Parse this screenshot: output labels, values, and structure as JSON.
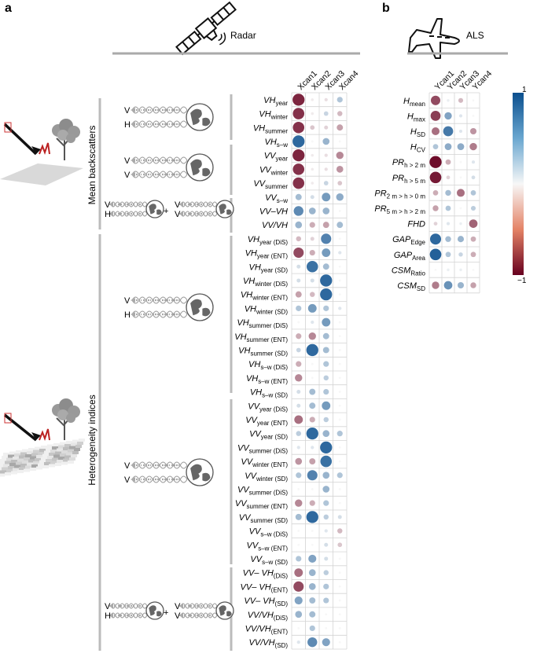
{
  "panel_labels": {
    "a": "a",
    "b": "b"
  },
  "headers": {
    "radar": "Radar",
    "als": "ALS"
  },
  "group_labels": {
    "mean": "Mean backscatters",
    "het": "Heterogeneity indices"
  },
  "pol": {
    "V": "V",
    "H": "H",
    "plus": "+"
  },
  "colorbar": {
    "max": "1",
    "min": "−1",
    "high_color": "#0b4f8e",
    "mid_color": "#f7f7f7",
    "low_color": "#67001f"
  },
  "chart_data": [
    {
      "type": "heatmap",
      "panel": "a",
      "columns": [
        "Xcan1",
        "Xcan2",
        "Xcan3",
        "Xcan4"
      ],
      "rows": [
        {
          "b": "VH",
          "s": "year",
          "v": [
            -0.85,
            -0.05,
            -0.1,
            0.3
          ]
        },
        {
          "b": "VH",
          "s": "winter",
          "v": [
            -0.8,
            -0.05,
            0.2,
            -0.25
          ]
        },
        {
          "b": "VH",
          "s": "summer",
          "v": [
            -0.8,
            -0.2,
            -0.15,
            -0.35
          ]
        },
        {
          "b": "VH",
          "s": "s–w",
          "v": [
            0.85,
            0,
            0.4,
            0
          ]
        },
        {
          "b": "VV",
          "s": "year",
          "v": [
            -0.85,
            -0.05,
            -0.1,
            -0.45
          ]
        },
        {
          "b": "VV",
          "s": "winter",
          "v": [
            -0.8,
            -0.05,
            -0.1,
            -0.4
          ]
        },
        {
          "b": "VV",
          "s": "summer",
          "v": [
            -0.8,
            -0.05,
            0.2,
            -0.2
          ]
        },
        {
          "b": "VV",
          "s": "s–w",
          "v": [
            0.35,
            0.15,
            0.55,
            0.45
          ]
        },
        {
          "b": "VV–VH",
          "s": "",
          "v": [
            0.65,
            0.4,
            0.4,
            0
          ]
        },
        {
          "b": "VV/VH",
          "s": "",
          "v": [
            0.4,
            -0.3,
            -0.35,
            0.35
          ]
        },
        {
          "b": "VH",
          "s": "year (DiS)",
          "v": [
            -0.25,
            -0.15,
            0.7,
            0
          ]
        },
        {
          "b": "VH",
          "s": "year (ENT)",
          "v": [
            -0.7,
            -0.3,
            0.55,
            0.1
          ]
        },
        {
          "b": "VH",
          "s": "year (SD)",
          "v": [
            0.15,
            0.8,
            0.35,
            0
          ]
        },
        {
          "b": "VH",
          "s": "winter (DiS)",
          "v": [
            0.15,
            0.15,
            0.85,
            0
          ]
        },
        {
          "b": "VH",
          "s": "winter (ENT)",
          "v": [
            -0.35,
            -0.25,
            0.85,
            0
          ]
        },
        {
          "b": "VH",
          "s": "winter (SD)",
          "v": [
            0.3,
            0.55,
            0.3,
            0.1
          ]
        },
        {
          "b": "VH",
          "s": "summer (DiS)",
          "v": [
            0,
            0.1,
            0.55,
            0
          ]
        },
        {
          "b": "VH",
          "s": "summer (ENT)",
          "v": [
            -0.3,
            -0.45,
            0.35,
            0
          ]
        },
        {
          "b": "VH",
          "s": "summer (SD)",
          "v": [
            0.2,
            0.85,
            0.35,
            0
          ]
        },
        {
          "b": "VH",
          "s": "s–w (DiS)",
          "v": [
            -0.3,
            0,
            0.3,
            0
          ]
        },
        {
          "b": "VH",
          "s": "s–w (ENT)",
          "v": [
            -0.45,
            0,
            0.25,
            0
          ]
        },
        {
          "b": "VH",
          "s": "s–w (SD)",
          "v": [
            0.15,
            0.35,
            0.3,
            0
          ]
        },
        {
          "b": "VV",
          "s": "year (DiS)",
          "v": [
            0.15,
            0.35,
            0.55,
            0
          ]
        },
        {
          "b": "VV",
          "s": "year (ENT)",
          "v": [
            -0.55,
            -0.3,
            0.25,
            0
          ]
        },
        {
          "b": "VV",
          "s": "year (SD)",
          "v": [
            0.25,
            0.85,
            0.4,
            0.3
          ]
        },
        {
          "b": "VV",
          "s": "summer (DiS)",
          "v": [
            0.1,
            0.1,
            0.85,
            0
          ]
        },
        {
          "b": "VV",
          "s": "winter (ENT)",
          "v": [
            -0.4,
            -0.35,
            0.8,
            0
          ]
        },
        {
          "b": "VV",
          "s": "winter (SD)",
          "v": [
            0.3,
            0.7,
            0.4,
            0.3
          ]
        },
        {
          "b": "VV",
          "s": "summer (DiS)",
          "v": [
            0,
            0,
            0.4,
            0
          ]
        },
        {
          "b": "VV",
          "s": "summer (ENT)",
          "v": [
            -0.45,
            -0.3,
            0.3,
            0
          ]
        },
        {
          "b": "VV",
          "s": "summer (SD)",
          "v": [
            0.35,
            0.85,
            0.25,
            0.15
          ]
        },
        {
          "b": "VV",
          "s": "s–w (DiS)",
          "v": [
            0,
            0,
            0.1,
            -0.25
          ]
        },
        {
          "b": "VV",
          "s": "s–w (ENT)",
          "v": [
            0,
            0,
            0.15,
            -0.2
          ]
        },
        {
          "b": "VV",
          "s": "s–w (SD)",
          "v": [
            0.3,
            0.5,
            0.15,
            0
          ]
        },
        {
          "b": "VV– VH",
          "s": "(DiS)",
          "v": [
            -0.55,
            0.4,
            0.25,
            0
          ]
        },
        {
          "b": "VV– VH",
          "s": "(ENT)",
          "v": [
            -0.7,
            0.4,
            0.3,
            0
          ]
        },
        {
          "b": "VV– VH",
          "s": "(SD)",
          "v": [
            0.5,
            0.35,
            0.3,
            0
          ]
        },
        {
          "b": "VV/VH",
          "s": "(DiS)",
          "v": [
            0.4,
            0.35,
            0,
            0
          ]
        },
        {
          "b": "VV/VH",
          "s": "(ENT)",
          "v": [
            0,
            0.3,
            0,
            0
          ]
        },
        {
          "b": "VV/VH",
          "s": "(SD)",
          "v": [
            0.1,
            0.65,
            0.5,
            0
          ]
        }
      ],
      "range": [
        -1,
        1
      ]
    },
    {
      "type": "heatmap",
      "panel": "b",
      "columns": [
        "Ycan1",
        "Ycan2",
        "Ycan3",
        "Ycan4"
      ],
      "rows": [
        {
          "b": "H",
          "s": "mean",
          "v": [
            -0.7,
            0.05,
            -0.25,
            0
          ]
        },
        {
          "b": "H",
          "s": "max",
          "v": [
            -0.75,
            0.5,
            0.1,
            0
          ]
        },
        {
          "b": "H",
          "s": "SD",
          "v": [
            -0.55,
            0.75,
            0.1,
            -0.4
          ]
        },
        {
          "b": "H",
          "s": "CV",
          "v": [
            0.3,
            0.45,
            0.45,
            -0.5
          ]
        },
        {
          "b": "PR",
          "s": "h > 2 m",
          "v": [
            -0.95,
            -0.3,
            0,
            0.1
          ]
        },
        {
          "b": "PR",
          "s": "h > 5 m",
          "v": [
            -0.9,
            -0.15,
            0,
            0.15
          ]
        },
        {
          "b": "PR",
          "s": "2 m > h > 0 m",
          "v": [
            -0.3,
            0.35,
            -0.55,
            0.3
          ]
        },
        {
          "b": "PR",
          "s": "5 m > h > 2 m",
          "v": [
            -0.35,
            0.3,
            0,
            0.25
          ]
        },
        {
          "b": "FHD",
          "s": "",
          "v": [
            -0.15,
            0.1,
            0.05,
            -0.6
          ]
        },
        {
          "b": "GAP",
          "s": "Edge",
          "v": [
            0.85,
            0.35,
            0.4,
            -0.3
          ]
        },
        {
          "b": "GAP",
          "s": "Area",
          "v": [
            0.9,
            0.3,
            0.2,
            -0.3
          ]
        },
        {
          "b": "CSM",
          "s": "Ratio",
          "v": [
            0,
            0.05,
            0.05,
            0
          ]
        },
        {
          "b": "CSM",
          "s": "SD",
          "v": [
            -0.5,
            0.6,
            0.4,
            -0.35
          ]
        }
      ],
      "range": [
        -1,
        1
      ]
    }
  ]
}
